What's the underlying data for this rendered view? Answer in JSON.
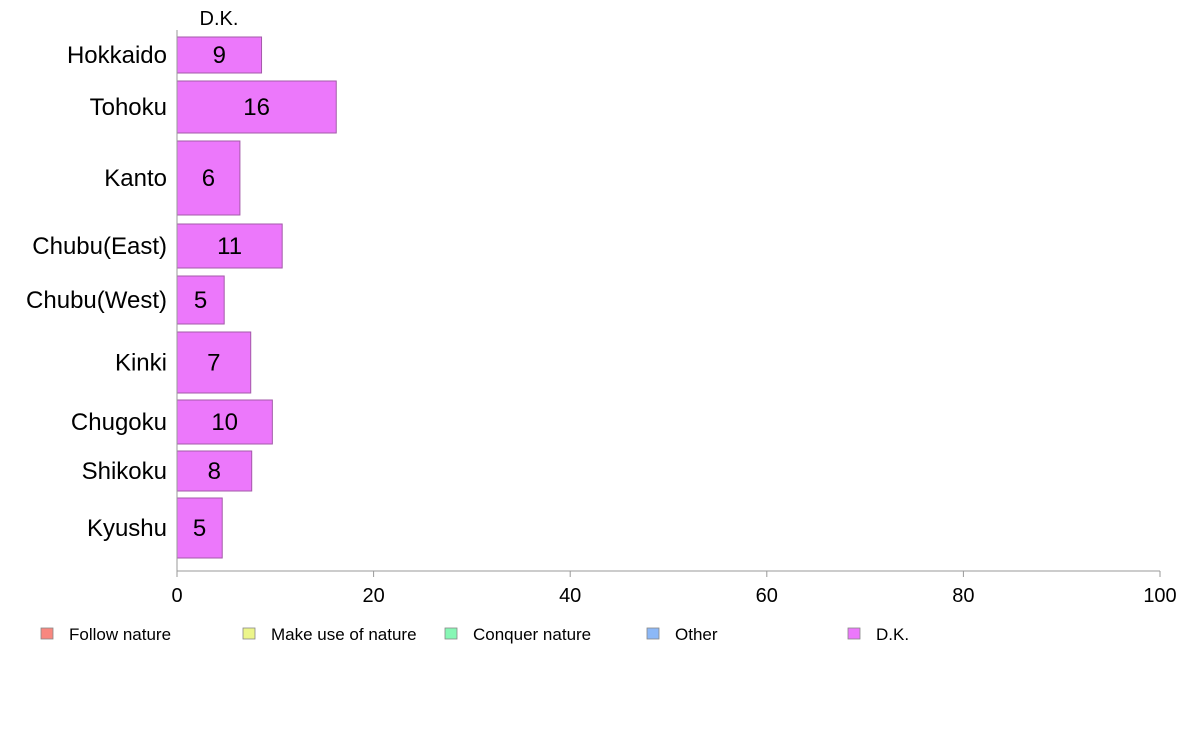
{
  "chart_data": {
    "type": "bar",
    "orientation": "horizontal",
    "stacked": true,
    "categories": [
      "Hokkaido",
      "Tohoku",
      "Kanto",
      "Chubu(East)",
      "Chubu(West)",
      "Kinki",
      "Chugoku",
      "Shikoku",
      "Kyushu"
    ],
    "series": [
      {
        "name": "Follow nature",
        "color": "#f8877f",
        "values": [
          null,
          null,
          null,
          null,
          null,
          null,
          null,
          null,
          null
        ]
      },
      {
        "name": "Make use of nature",
        "color": "#ecf58a",
        "values": [
          null,
          null,
          null,
          null,
          null,
          null,
          null,
          null,
          null
        ]
      },
      {
        "name": "Conquer nature",
        "color": "#87f7b5",
        "values": [
          null,
          null,
          null,
          null,
          null,
          null,
          null,
          null,
          null
        ]
      },
      {
        "name": "Other",
        "color": "#8cb8f7",
        "values": [
          null,
          null,
          null,
          null,
          null,
          null,
          null,
          null,
          null
        ]
      },
      {
        "name": "D.K.",
        "color": "#ec78fb",
        "values": [
          8.6,
          16.2,
          6.4,
          10.7,
          4.8,
          7.5,
          9.7,
          7.6,
          4.6
        ],
        "labels": [
          "9",
          "16",
          "6",
          "11",
          "5",
          "7",
          "10",
          "8",
          "5"
        ]
      }
    ],
    "column_title": "D.K.",
    "xlim": [
      0,
      100
    ],
    "xticks": [
      "0",
      "20",
      "40",
      "60",
      "80",
      "100"
    ],
    "grid": false,
    "legend": "bottom"
  }
}
